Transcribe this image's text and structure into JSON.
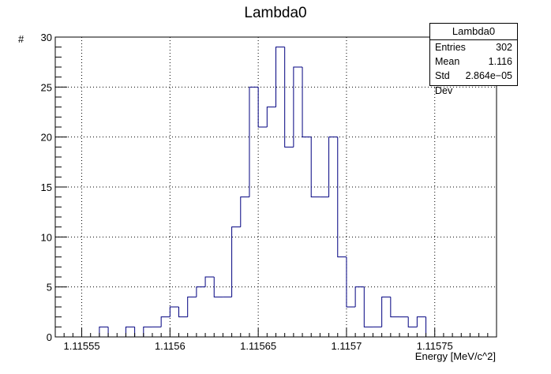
{
  "chart_data": {
    "type": "histogram",
    "title": "Lambda0",
    "xlabel": "Energy [MeV/c^2]",
    "ylabel": "#",
    "xlim": [
      1.115535,
      1.115785
    ],
    "ylim": [
      0,
      30
    ],
    "bin_width": 5e-06,
    "bin_start": 1.115535,
    "values": [
      0,
      0,
      0,
      0,
      0,
      1,
      0,
      0,
      1,
      0,
      1,
      1,
      2,
      3,
      2,
      4,
      5,
      6,
      4,
      4,
      11,
      14,
      25,
      21,
      23,
      29,
      19,
      27,
      20,
      14,
      14,
      20,
      8,
      3,
      5,
      1,
      1,
      4,
      2,
      2,
      1,
      2,
      0,
      0,
      0,
      0,
      0,
      0,
      0,
      0
    ],
    "x_ticks": [
      1.11555,
      1.1156,
      1.11565,
      1.1157,
      1.11575
    ],
    "x_tick_labels": [
      "1.11555",
      "1.1156",
      "1.11565",
      "1.1157",
      "1.11575"
    ],
    "y_ticks": [
      0,
      5,
      10,
      15,
      20,
      25,
      30
    ],
    "y_tick_labels": [
      "0",
      "5",
      "10",
      "15",
      "20",
      "25",
      "30"
    ],
    "grid": true,
    "line_color": "#000080",
    "stats": {
      "name": "Lambda0",
      "rows": [
        {
          "label": "Entries",
          "value": "302"
        },
        {
          "label": "Mean",
          "value": "1.116"
        },
        {
          "label": "Std Dev",
          "value": "2.864e−05"
        }
      ]
    }
  }
}
